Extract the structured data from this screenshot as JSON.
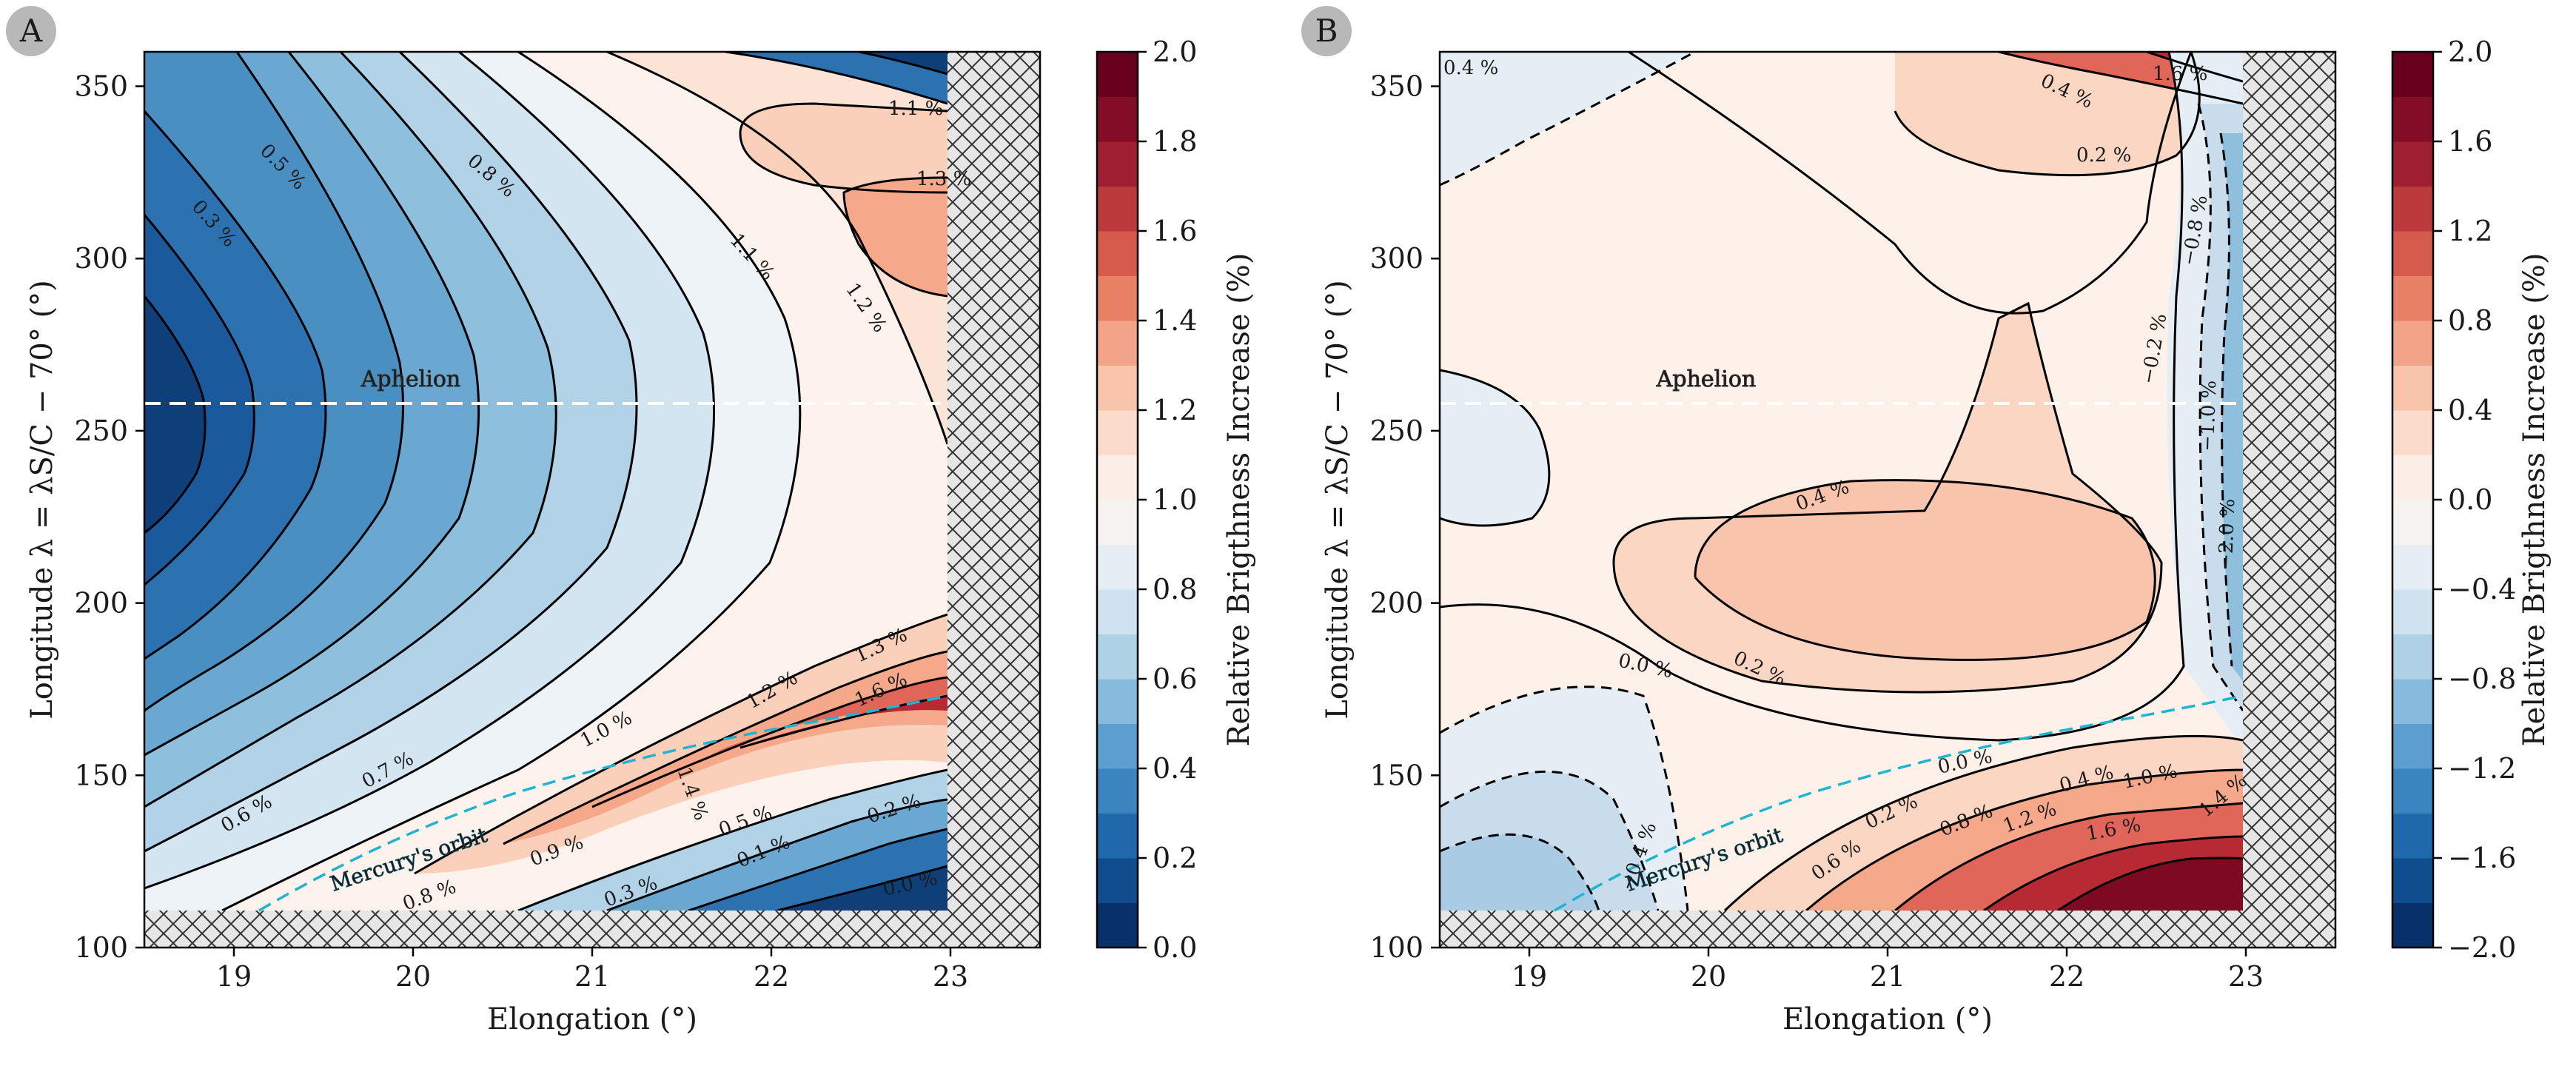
{
  "figure": {
    "description_labels": [
      "A",
      "B"
    ]
  },
  "panels": [
    {
      "label": "A",
      "colorbar": {
        "label": "Relative Brigthness Increase (%)",
        "min": 0.0,
        "max": 2.0,
        "ticks": [
          "0.0",
          "0.2",
          "0.4",
          "0.6",
          "0.8",
          "1.0",
          "1.2",
          "1.4",
          "1.6",
          "1.8",
          "2.0"
        ],
        "levels": 20
      },
      "annotations": {
        "aphelion": "Aphelion",
        "orbit": "Mercury's orbit"
      },
      "contour_labels": [
        "0.3 %",
        "0.5 %",
        "0.8 %",
        "1.1 %",
        "1.2 %",
        "1.3 %",
        "1.1 %",
        "0.7 %",
        "0.6 %",
        "0.8 %",
        "0.9 %",
        "1.0 %",
        "1.2 %",
        "1.3 %",
        "1.6 %",
        "1.4 %",
        "0.5 %",
        "0.1 %",
        "0.3 %",
        "0.2 %",
        "0.0 %"
      ]
    },
    {
      "label": "B",
      "colorbar": {
        "label": "Relative Brigthness Increase (%)",
        "min": -2.0,
        "max": 2.0,
        "ticks": [
          "−2.0",
          "−1.6",
          "−1.2",
          "−0.8",
          "−0.4",
          "0.0",
          "0.4",
          "0.8",
          "1.2",
          "1.6",
          "2.0"
        ],
        "levels": 20
      },
      "annotations": {
        "aphelion": "Aphelion",
        "orbit": "Mercury's orbit"
      },
      "contour_labels": [
        "0.4 %",
        "0.4 %",
        "1.6 %",
        "0.2 %",
        "0.4 %",
        "0.2 %",
        "0.0 %",
        "−0.2 %",
        "−0.8 %",
        "−1.0 %",
        "−2.0 %",
        "0.0 %",
        "0.2 %",
        "0.4 %",
        "1.0 %",
        "0.6 %",
        "0.8 %",
        "1.2 %",
        "1.6 %",
        "1.4 %",
        "−0.4 %"
      ]
    }
  ],
  "chart_data": [
    {
      "type": "heatmap",
      "panel": "A",
      "title": "",
      "xlabel": "Elongation (°)",
      "ylabel": "Longitude λ = λS/C − 70° (°)",
      "xlim": [
        18.5,
        23.5
      ],
      "ylim": [
        100,
        360
      ],
      "xticks": [
        19,
        20,
        21,
        22,
        23
      ],
      "yticks": [
        100,
        150,
        200,
        250,
        300,
        350
      ],
      "data_extent_x": [
        18.5,
        23.0
      ],
      "data_extent_y": [
        110,
        360
      ],
      "value_range": [
        0.0,
        2.0
      ],
      "aphelion_longitude": 257,
      "orbit_line": {
        "x": [
          19.2,
          20.0,
          21.0,
          22.0,
          23.0
        ],
        "y": [
          110,
          128,
          143,
          157,
          172
        ]
      },
      "hatched_regions": [
        "elongation > 23.0",
        "longitude < 110"
      ]
    },
    {
      "type": "heatmap",
      "panel": "B",
      "title": "",
      "xlabel": "Elongation (°)",
      "ylabel": "Longitude λ = λS/C − 70° (°)",
      "xlim": [
        18.5,
        23.5
      ],
      "ylim": [
        100,
        360
      ],
      "xticks": [
        19,
        20,
        21,
        22,
        23
      ],
      "yticks": [
        100,
        150,
        200,
        250,
        300,
        350
      ],
      "data_extent_x": [
        18.5,
        23.0
      ],
      "data_extent_y": [
        110,
        360
      ],
      "value_range": [
        -2.0,
        2.0
      ],
      "aphelion_longitude": 257,
      "orbit_line": {
        "x": [
          19.2,
          20.0,
          21.0,
          22.0,
          23.0
        ],
        "y": [
          110,
          128,
          143,
          157,
          172
        ]
      },
      "hatched_regions": [
        "elongation > 23.0",
        "longitude < 110"
      ]
    }
  ]
}
